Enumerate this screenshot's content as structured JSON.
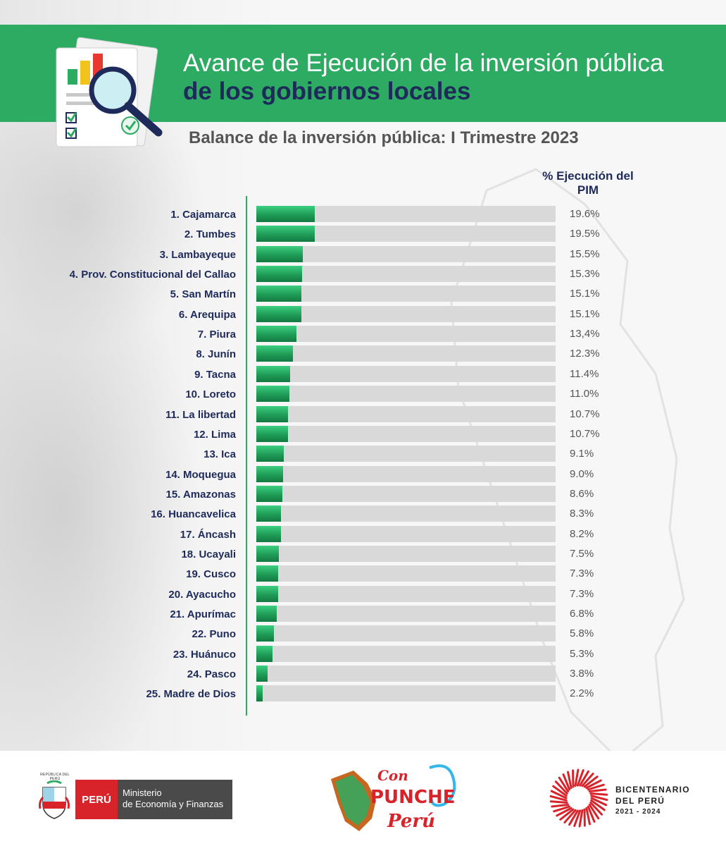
{
  "header": {
    "title_line1": "Avance de Ejecución de la inversión pública",
    "title_line2": "de los gobiernos locales",
    "subtitle": "Balance de la inversión pública: I Trimestre 2023"
  },
  "colors": {
    "brand_green": "#2eab62",
    "navy": "#1e2a5a",
    "track_gray": "#d9d9d9",
    "peru_red": "#d8232a"
  },
  "chart_data": {
    "type": "bar",
    "orientation": "horizontal",
    "title": "Balance de la inversión pública: I Trimestre 2023",
    "value_header": "% Ejecución del PIM",
    "xlim": [
      0,
      100
    ],
    "categories": [
      "1. Cajamarca",
      "2. Tumbes",
      "3. Lambayeque",
      "4. Prov. Constitucional del Callao",
      "5. San Martín",
      "6. Arequipa",
      "7. Piura",
      "8. Junín",
      "9. Tacna",
      "10. Loreto",
      "11. La libertad",
      "12. Lima",
      "13. Ica",
      "14. Moquegua",
      "15. Amazonas",
      "16. Huancavelica",
      "17. Áncash",
      "18. Ucayali",
      "19. Cusco",
      "20. Ayacucho",
      "21. Apurímac",
      "22. Puno",
      "23. Huánuco",
      "24. Pasco",
      "25. Madre de Dios"
    ],
    "values": [
      19.6,
      19.5,
      15.5,
      15.3,
      15.1,
      15.1,
      13.4,
      12.3,
      11.4,
      11.0,
      10.7,
      10.7,
      9.1,
      9.0,
      8.6,
      8.3,
      8.2,
      7.5,
      7.3,
      7.3,
      6.8,
      5.8,
      5.3,
      3.8,
      2.2
    ],
    "value_labels": [
      "19.6%",
      "19.5%",
      "15.5%",
      "15.3%",
      "15.1%",
      "15.1%",
      "13,4%",
      "12.3%",
      "11.4%",
      "11.0%",
      "10.7%",
      "10.7%",
      "9.1%",
      "9.0%",
      "8.6%",
      "8.3%",
      "8.2%",
      "7.5%",
      "7.3%",
      "7.3%",
      "6.8%",
      "5.8%",
      "5.3%",
      "3.8%",
      "2.2%"
    ]
  },
  "footer": {
    "shield_caption": "REPÚBLICA DEL PERÚ",
    "peru_label": "PERÚ",
    "ministry_line1": "Ministerio",
    "ministry_line2": "de Economía y Finanzas",
    "punche_con": "Con",
    "punche_word": "PUNCHE",
    "punche_peru": "Perú",
    "bicent_line1": "BICENTENARIO",
    "bicent_line2": "DEL PERÚ",
    "bicent_years": "2021 - 2024"
  }
}
